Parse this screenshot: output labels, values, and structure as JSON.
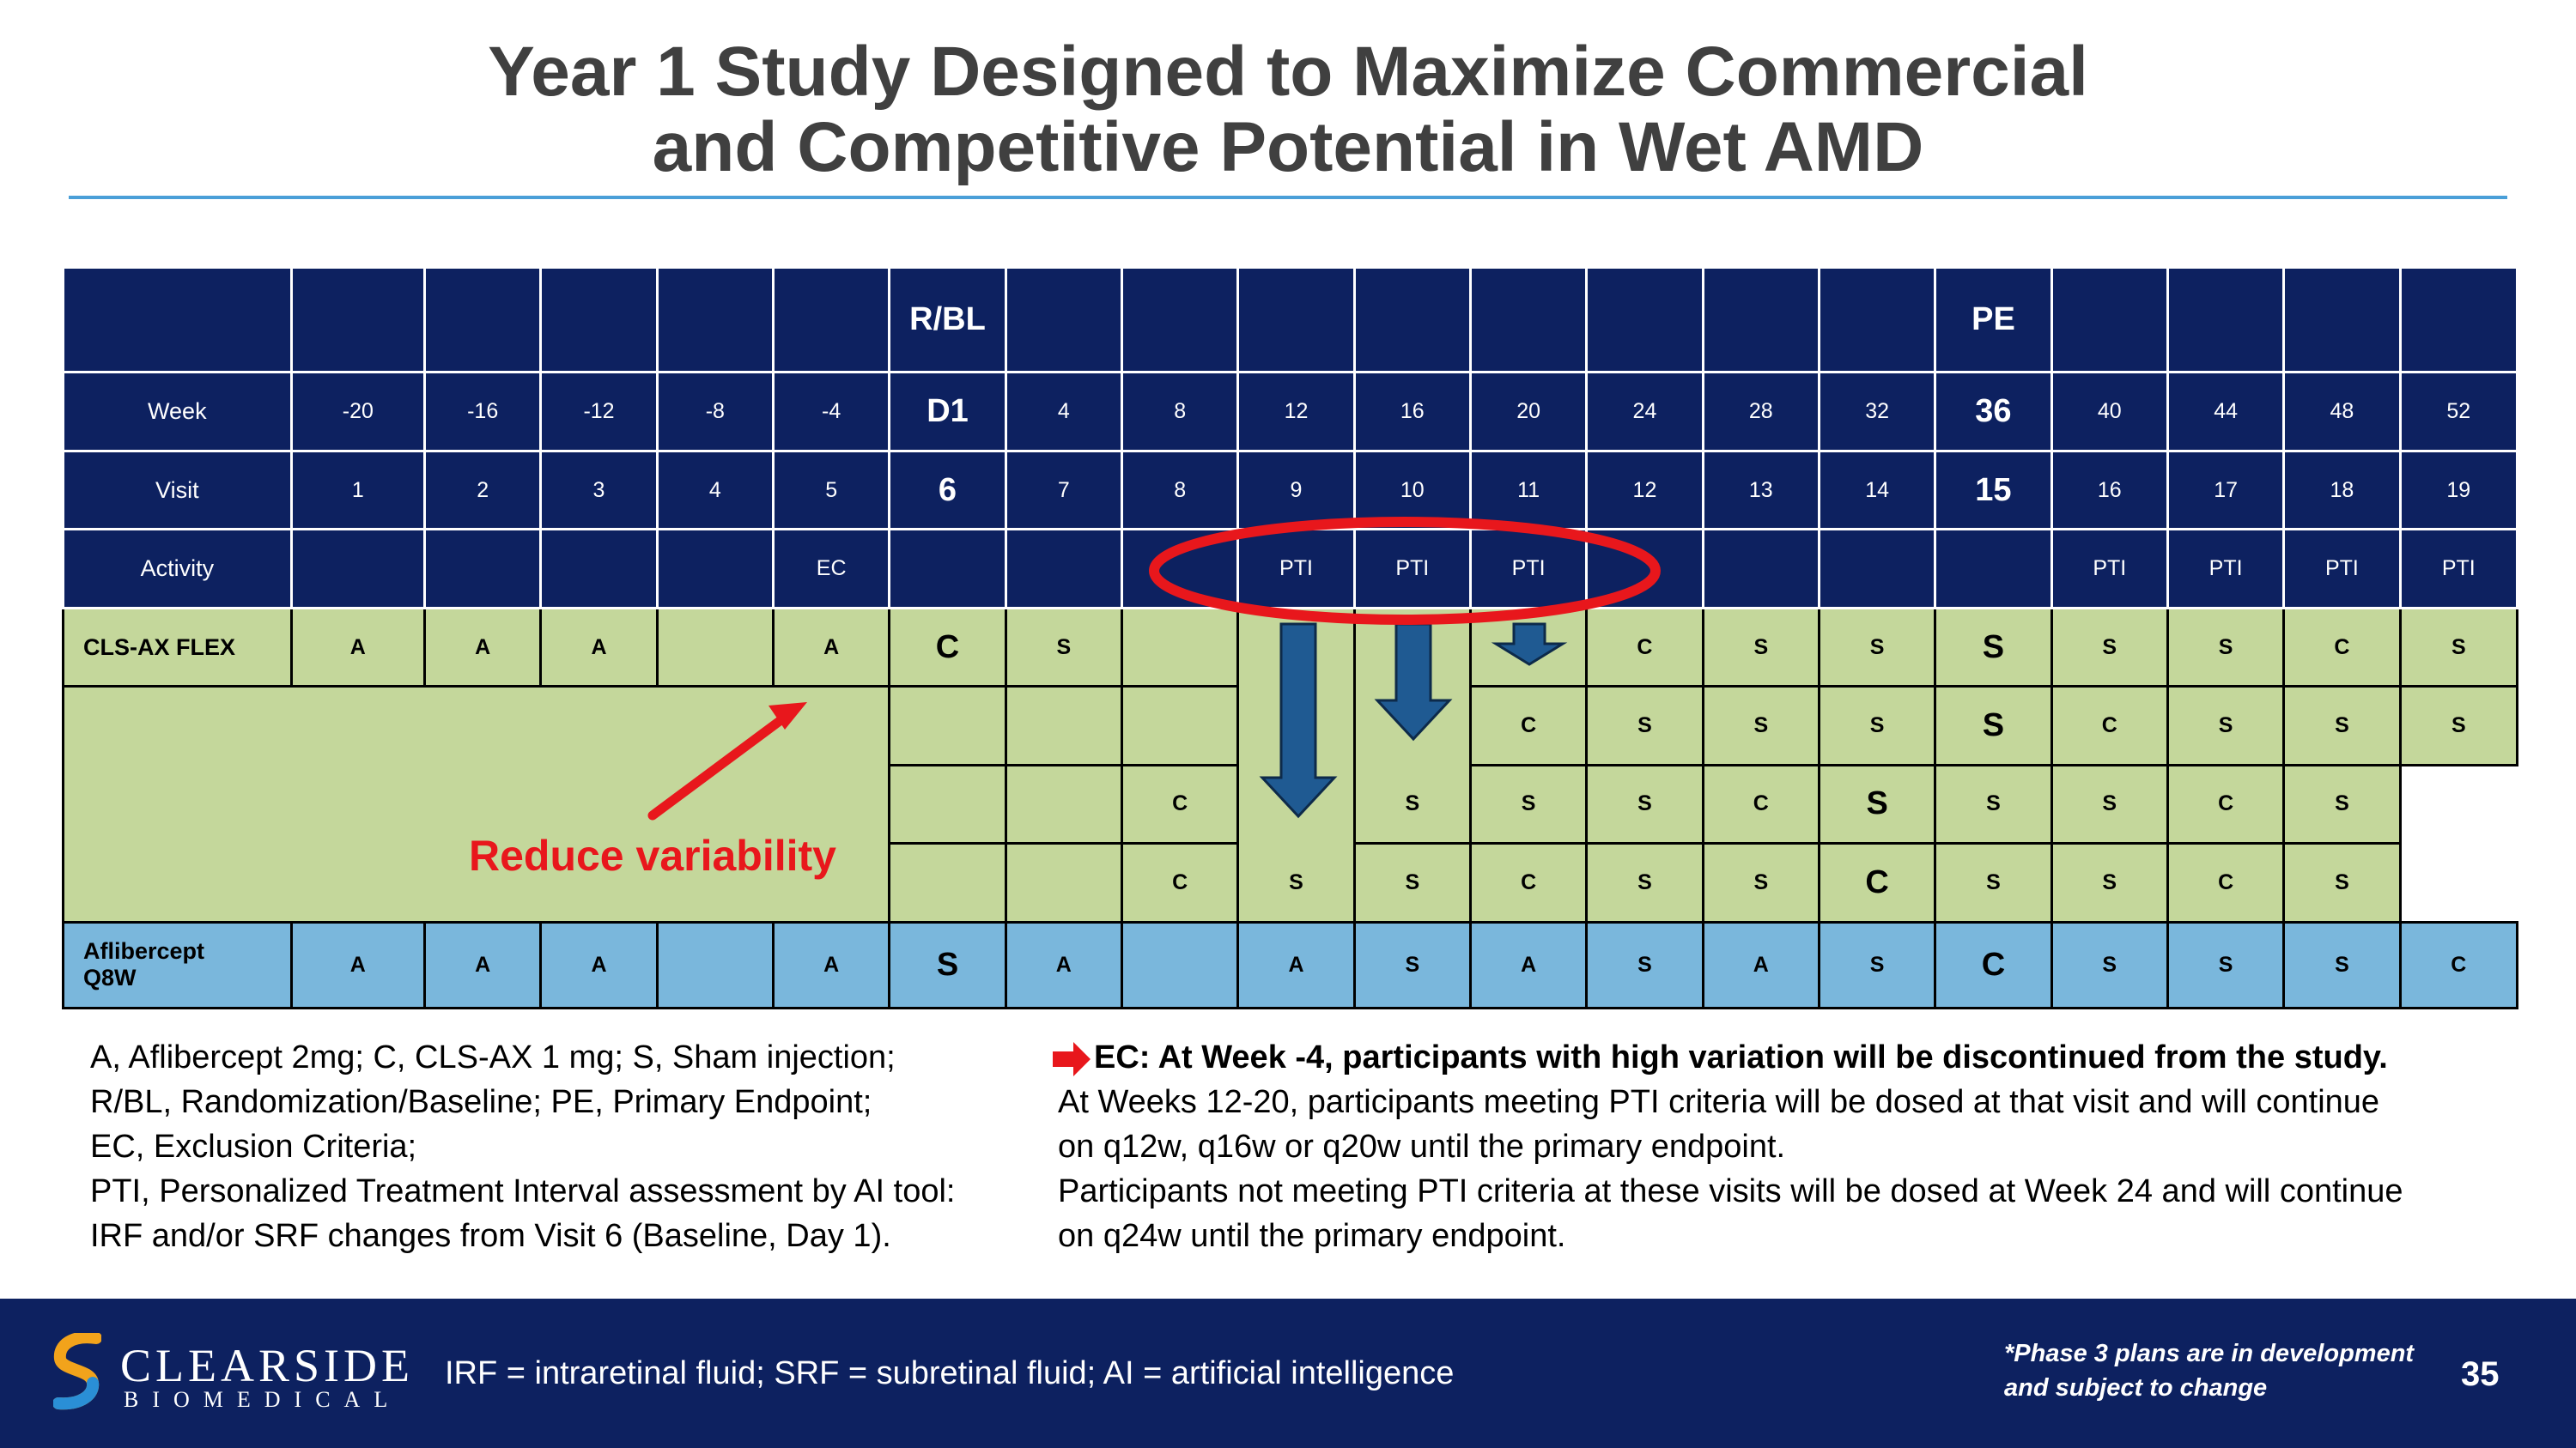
{
  "title": {
    "line1": "Year 1 Study Designed to Maximize Commercial",
    "line2": "and Competitive Potential in Wet AMD"
  },
  "schedule": {
    "top_labels": {
      "rbl": "R/BL",
      "pe": "PE"
    },
    "row_labels": {
      "week": "Week",
      "visit": "Visit",
      "activity": "Activity",
      "clsax": "CLS-AX FLEX",
      "afl_1": "Aflibercept",
      "afl_2": "Q8W"
    },
    "weeks": [
      "-20",
      "-16",
      "-12",
      "-8",
      "-4",
      "D1",
      "4",
      "8",
      "12",
      "16",
      "20",
      "24",
      "28",
      "32",
      "36",
      "40",
      "44",
      "48",
      "52"
    ],
    "visits": [
      "1",
      "2",
      "3",
      "4",
      "5",
      "6",
      "7",
      "8",
      "9",
      "10",
      "11",
      "12",
      "13",
      "14",
      "15",
      "16",
      "17",
      "18",
      "19"
    ],
    "activity": [
      "",
      "",
      "",
      "",
      "EC",
      "",
      "",
      "",
      "PTI",
      "PTI",
      "PTI",
      "",
      "",
      "",
      "",
      "PTI",
      "PTI",
      "PTI",
      "PTI"
    ],
    "clsax_row1": [
      "A",
      "A",
      "A",
      "",
      "A",
      "C",
      "S",
      "",
      "",
      "",
      "",
      "C",
      "S",
      "S",
      "S",
      "S",
      "S",
      "C",
      "S"
    ],
    "clsax_row2": [
      "C",
      "S",
      "S",
      "S",
      "S",
      "C",
      "S",
      "S",
      "S"
    ],
    "clsax_row3": [
      "C",
      "S",
      "S",
      "S",
      "C",
      "S",
      "S",
      "S",
      "C",
      "S"
    ],
    "clsax_row4": [
      "C",
      "S",
      "S",
      "C",
      "S",
      "S",
      "C",
      "S",
      "S",
      "C",
      "S"
    ],
    "aflibercept": [
      "A",
      "A",
      "A",
      "",
      "A",
      "S",
      "A",
      "",
      "A",
      "S",
      "A",
      "S",
      "A",
      "S",
      "C",
      "S",
      "S",
      "S",
      "C"
    ]
  },
  "annotation": {
    "reduce_variability": "Reduce variability",
    "arrow_color": "#e8171c"
  },
  "legend_left": [
    "A, Aflibercept 2mg; C, CLS-AX 1 mg; S, Sham injection;",
    "R/BL, Randomization/Baseline; PE, Primary Endpoint;",
    "EC, Exclusion Criteria;",
    "PTI, Personalized Treatment Interval assessment by AI tool:",
    "IRF and/or SRF changes from Visit 6 (Baseline, Day 1)."
  ],
  "legend_right": {
    "ec_note": "EC: At Week -4, participants with high variation will be discontinued from the study.",
    "line1": "At Weeks 12-20, participants meeting PTI criteria will be dosed at that visit and will continue",
    "line2": "on q12w, q16w or q20w until the primary endpoint.",
    "line3": "Participants not meeting PTI criteria at these visits will be dosed at Week 24 and will continue",
    "line4": "on q24w until the primary endpoint."
  },
  "footer": {
    "logo_name": "CLEARSIDE",
    "logo_sub": "BIOMEDICAL",
    "footnote": "IRF = intraretinal fluid; SRF = subretinal fluid; AI = artificial intelligence",
    "disclaimer_1": "*Phase 3 plans are in development",
    "disclaimer_2": "and subject to change",
    "page_number": "35"
  },
  "colors": {
    "navy": "#0d2160",
    "green": "#c4d79b",
    "blue": "#7ab7dc",
    "red": "#e8171c",
    "arrow": "#1f5a92",
    "rule": "#4a9fd8"
  }
}
